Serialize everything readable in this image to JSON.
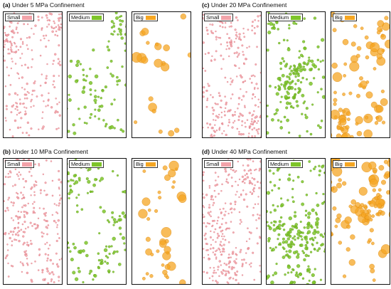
{
  "groups": [
    {
      "id": "a",
      "tag": "(a)",
      "title": "Under 5 MPa Confinement",
      "seed": 11
    },
    {
      "id": "c",
      "tag": "(c)",
      "title": "Under 20 MPa Confinement",
      "seed": 23
    },
    {
      "id": "b",
      "tag": "(b)",
      "title": "Under 10 MPa Confinement",
      "seed": 37
    },
    {
      "id": "d",
      "tag": "(d)",
      "title": "Under 40 MPa Confinement",
      "seed": 51
    }
  ],
  "panels": [
    {
      "key": "small",
      "label": "Small",
      "color": "#f2a3a9",
      "stroke": "#d9707a"
    },
    {
      "key": "medium",
      "label": "Medium",
      "color": "#7ec42a",
      "stroke": "#5b9a14"
    },
    {
      "key": "big",
      "label": "Big",
      "color": "#f5a623",
      "stroke": "#d9850a"
    }
  ]
}
